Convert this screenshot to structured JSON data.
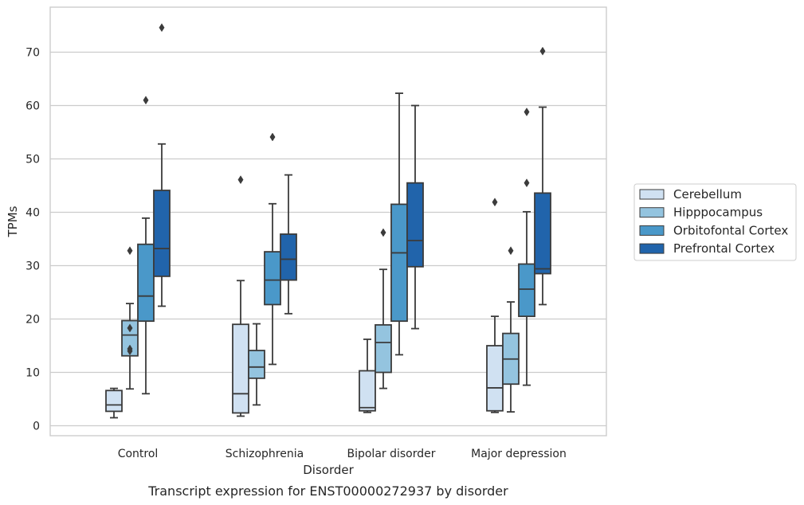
{
  "chart_data": {
    "type": "boxplot",
    "title": "",
    "caption": "Transcript expression for ENST00000272937 by disorder",
    "xlabel": "Disorder",
    "ylabel": "TPMs",
    "ylim": [
      -2,
      78
    ],
    "yticks": [
      0,
      10,
      20,
      30,
      40,
      50,
      60,
      70
    ],
    "grid": "horizontal",
    "legend_position": "right",
    "categories": [
      "Control",
      "Schizophrenia",
      "Bipolar disorder",
      "Major depression"
    ],
    "series": [
      {
        "name": "Cerebellum",
        "color": "#d0e1f2",
        "boxes": [
          {
            "whislo": 1.5,
            "q1": 2.7,
            "med": 3.9,
            "q3": 6.6,
            "whishi": 7.0,
            "fliers": []
          },
          {
            "whislo": 1.8,
            "q1": 2.4,
            "med": 6.0,
            "q3": 19.0,
            "whishi": 27.2,
            "fliers": [
              46.1
            ]
          },
          {
            "whislo": 2.5,
            "q1": 2.8,
            "med": 3.4,
            "q3": 10.3,
            "whishi": 16.2,
            "fliers": []
          },
          {
            "whislo": 2.5,
            "q1": 2.8,
            "med": 7.1,
            "q3": 15.0,
            "whishi": 20.5,
            "fliers": [
              41.9
            ]
          }
        ]
      },
      {
        "name": "Hipppocampus",
        "color": "#94c4df",
        "boxes": [
          {
            "whislo": 6.9,
            "q1": 13.1,
            "med": 17.0,
            "q3": 19.7,
            "whishi": 22.9,
            "fliers": [
              14.0,
              14.4,
              18.3,
              32.8
            ]
          },
          {
            "whislo": 3.9,
            "q1": 8.9,
            "med": 11.0,
            "q3": 14.1,
            "whishi": 19.1,
            "fliers": []
          },
          {
            "whislo": 7.0,
            "q1": 10.0,
            "med": 15.6,
            "q3": 18.9,
            "whishi": 29.3,
            "fliers": [
              36.2
            ]
          },
          {
            "whislo": 2.6,
            "q1": 7.8,
            "med": 12.5,
            "q3": 17.3,
            "whishi": 23.2,
            "fliers": [
              32.8
            ]
          }
        ]
      },
      {
        "name": "Orbitofontal Cortex",
        "color": "#4a98c9",
        "boxes": [
          {
            "whislo": 6.0,
            "q1": 19.6,
            "med": 24.3,
            "q3": 34.0,
            "whishi": 38.9,
            "fliers": [
              61.0
            ]
          },
          {
            "whislo": 11.5,
            "q1": 22.7,
            "med": 27.3,
            "q3": 32.6,
            "whishi": 41.6,
            "fliers": [
              54.1
            ]
          },
          {
            "whislo": 13.3,
            "q1": 19.6,
            "med": 32.4,
            "q3": 41.5,
            "whishi": 62.3,
            "fliers": []
          },
          {
            "whislo": 7.6,
            "q1": 20.5,
            "med": 25.6,
            "q3": 30.3,
            "whishi": 40.1,
            "fliers": [
              45.5,
              58.8
            ]
          }
        ]
      },
      {
        "name": "Prefrontal Cortex",
        "color": "#2164ab",
        "boxes": [
          {
            "whislo": 22.4,
            "q1": 28.0,
            "med": 33.2,
            "q3": 44.1,
            "whishi": 52.8,
            "fliers": [
              74.6
            ]
          },
          {
            "whislo": 21.0,
            "q1": 27.3,
            "med": 31.2,
            "q3": 35.9,
            "whishi": 47.0,
            "fliers": []
          },
          {
            "whislo": 18.2,
            "q1": 29.8,
            "med": 34.7,
            "q3": 45.5,
            "whishi": 60.0,
            "fliers": []
          },
          {
            "whislo": 22.7,
            "q1": 28.5,
            "med": 29.4,
            "q3": 43.6,
            "whishi": 59.7,
            "fliers": [
              70.2
            ]
          }
        ]
      }
    ]
  }
}
